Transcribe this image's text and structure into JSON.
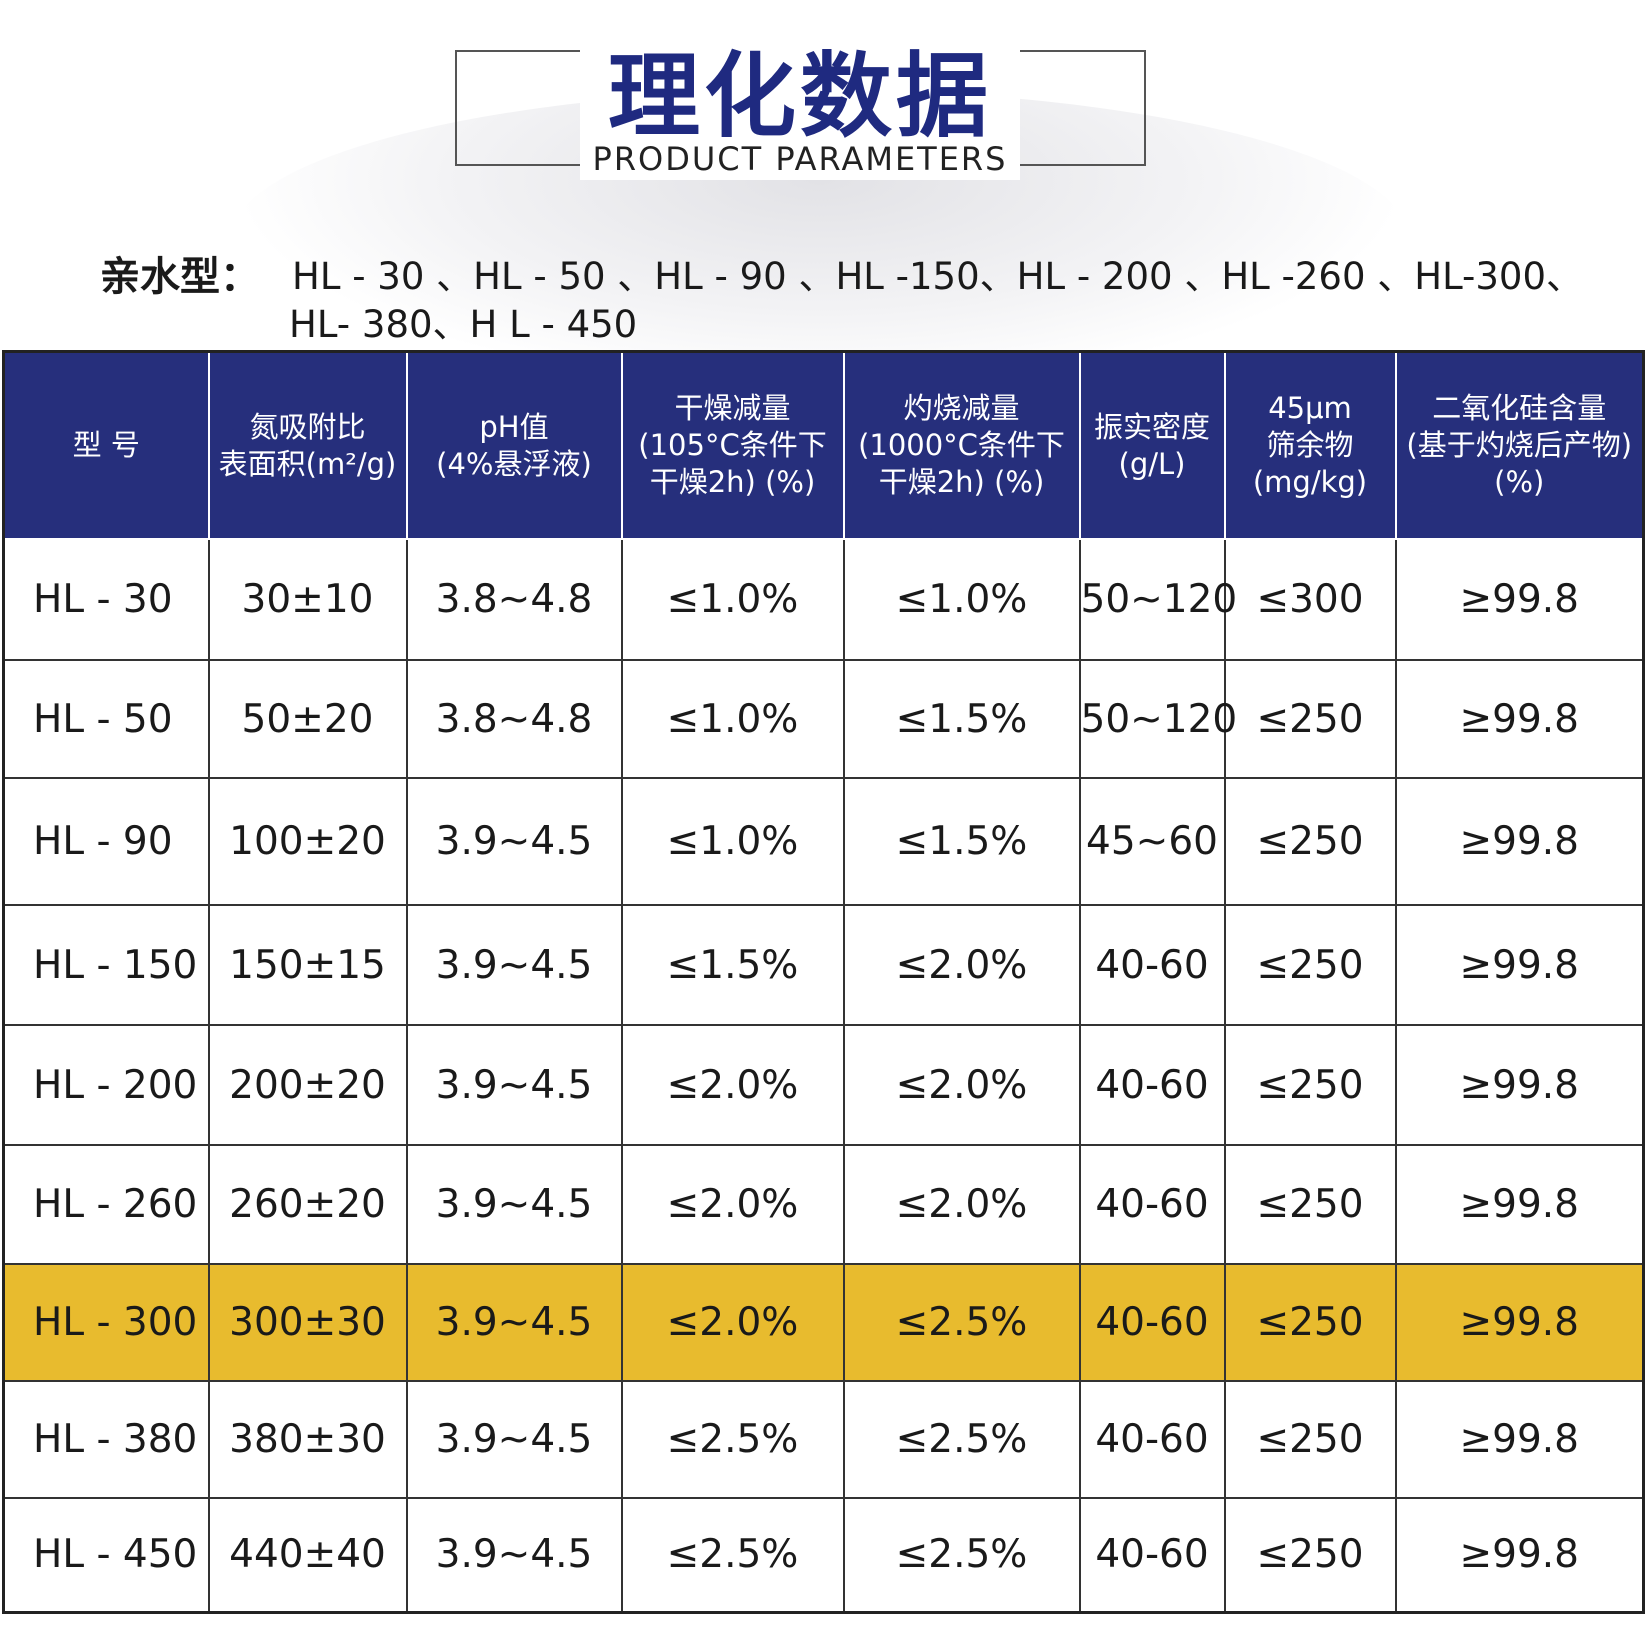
{
  "header": {
    "title": "理化数据",
    "subtitle": "PRODUCT PARAMETERS"
  },
  "intro": {
    "label": "亲水型：",
    "lines": [
      "HL - 30 、HL - 50 、HL - 90 、HL -150、HL - 200 、HL -260 、HL-300、",
      "HL- 380、H L - 450"
    ]
  },
  "table": {
    "headers": [
      [
        "型 号"
      ],
      [
        "氮吸附比",
        "表面积(m²/g)"
      ],
      [
        "pH值",
        "(4%悬浮液)"
      ],
      [
        "干燥减量",
        "(105°C条件下",
        "干燥2h) (%)"
      ],
      [
        "灼烧减量",
        "(1000°C条件下",
        "干燥2h) (%)"
      ],
      [
        "振实密度",
        "(g/L)"
      ],
      [
        "45μm",
        "筛余物",
        "(mg/kg)"
      ],
      [
        "二氧化硅含量",
        "(基于灼烧后产物)",
        "(%)"
      ]
    ],
    "rows": [
      [
        "HL - 30",
        "30±10",
        "3.8~4.8",
        "≤1.0%",
        "≤1.0%",
        "50~120",
        "≤300",
        "≥99.8"
      ],
      [
        "HL - 50",
        "50±20",
        "3.8~4.8",
        "≤1.0%",
        "≤1.5%",
        "50~120",
        "≤250",
        "≥99.8"
      ],
      [
        "HL - 90",
        "100±20",
        "3.9~4.5",
        "≤1.0%",
        "≤1.5%",
        "45~60",
        "≤250",
        "≥99.8"
      ],
      [
        "HL - 150",
        "150±15",
        "3.9~4.5",
        "≤1.5%",
        "≤2.0%",
        "40-60",
        "≤250",
        "≥99.8"
      ],
      [
        "HL - 200",
        "200±20",
        "3.9~4.5",
        "≤2.0%",
        "≤2.0%",
        "40-60",
        "≤250",
        "≥99.8"
      ],
      [
        "HL - 260",
        "260±20",
        "3.9~4.5",
        "≤2.0%",
        "≤2.0%",
        "40-60",
        "≤250",
        "≥99.8"
      ],
      [
        "HL - 300",
        "300±30",
        "3.9~4.5",
        "≤2.0%",
        "≤2.5%",
        "40-60",
        "≤250",
        "≥99.8"
      ],
      [
        "HL - 380",
        "380±30",
        "3.9~4.5",
        "≤2.5%",
        "≤2.5%",
        "40-60",
        "≤250",
        "≥99.8"
      ],
      [
        "HL - 450",
        "440±40",
        "3.9~4.5",
        "≤2.5%",
        "≤2.5%",
        "40-60",
        "≤250",
        "≥99.8"
      ]
    ]
  }
}
